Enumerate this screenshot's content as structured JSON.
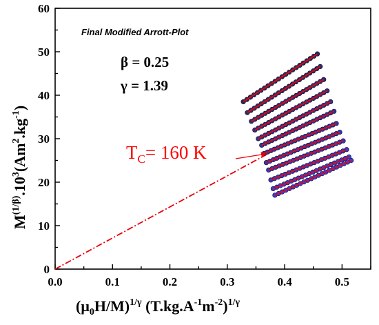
{
  "chart_data": {
    "type": "scatter",
    "title": "",
    "annotation": "Final Modified Arrott-Plot",
    "beta_label": "β = 0.25",
    "gamma_label": "γ = 1.39",
    "tc": {
      "prefix": "T",
      "sub": "C",
      "text": "= 160 K"
    },
    "xlabel": {
      "p1": "(μ",
      "s1": "0",
      "p2": "H/M)",
      "sup1": "1/γ",
      "p3": " (T.kg.A",
      "sup2": "-1",
      "p4": "m",
      "sup3": "-2",
      "p5": ")",
      "sup4": "1/γ"
    },
    "ylabel": {
      "p1": "M",
      "sup1": "(1/β)",
      "p2": ".10",
      "sup2": "3",
      "p3": "(Am",
      "sup3": "2",
      "p4": ".kg",
      "sup4": "-1",
      "p5": ")"
    },
    "xlim": [
      0.0,
      0.55
    ],
    "ylim": [
      0,
      60
    ],
    "xticks": [
      "0.0",
      "0.1",
      "0.2",
      "0.3",
      "0.4",
      "0.5"
    ],
    "yticks": [
      "0",
      "10",
      "20",
      "30",
      "40",
      "50",
      "60"
    ],
    "isotherms": [
      {
        "x0": 0.328,
        "y0": 38.5,
        "x1": 0.457,
        "y1": 49.5
      },
      {
        "x0": 0.335,
        "y0": 36.0,
        "x1": 0.462,
        "y1": 46.6
      },
      {
        "x0": 0.342,
        "y0": 34.0,
        "x1": 0.468,
        "y1": 43.6
      },
      {
        "x0": 0.348,
        "y0": 32.0,
        "x1": 0.474,
        "y1": 41.0
      },
      {
        "x0": 0.354,
        "y0": 30.0,
        "x1": 0.48,
        "y1": 38.5
      },
      {
        "x0": 0.36,
        "y0": 28.5,
        "x1": 0.486,
        "y1": 36.3
      },
      {
        "x0": 0.364,
        "y0": 26.6,
        "x1": 0.49,
        "y1": 33.5
      },
      {
        "x0": 0.368,
        "y0": 24.5,
        "x1": 0.496,
        "y1": 31.5
      },
      {
        "x0": 0.372,
        "y0": 22.8,
        "x1": 0.502,
        "y1": 29.5
      },
      {
        "x0": 0.376,
        "y0": 20.5,
        "x1": 0.508,
        "y1": 27.5
      },
      {
        "x0": 0.38,
        "y0": 18.5,
        "x1": 0.512,
        "y1": 25.8
      },
      {
        "x0": 0.383,
        "y0": 17.0,
        "x1": 0.516,
        "y1": 25.0
      }
    ],
    "tc_line": {
      "x": [
        0.0,
        0.39
      ],
      "y": [
        0,
        27.9
      ]
    },
    "colors": {
      "fit_line": "#ff0000",
      "tc_line": "#e8000b",
      "tc_text": "#ff0000",
      "axis": "#000000"
    }
  }
}
